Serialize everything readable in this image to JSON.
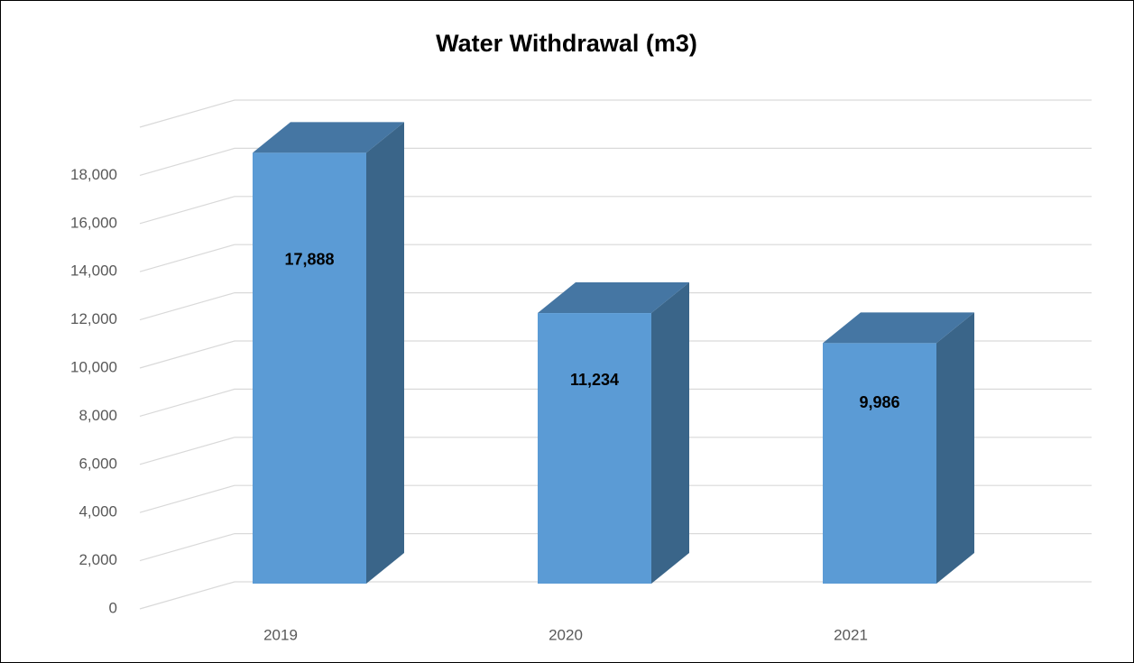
{
  "chart_data": {
    "type": "bar3d",
    "title": "Water Withdrawal (m3)",
    "categories": [
      "2019",
      "2020",
      "2021"
    ],
    "values": [
      17888,
      11234,
      9986
    ],
    "value_labels": [
      "17,888",
      "11,234",
      "9,986"
    ],
    "color": "#5b9bd5",
    "ylim": [
      0,
      20000
    ],
    "yticks": [
      0,
      {
        "value": 2000,
        "label": "2,000"
      },
      {
        "value": 4000,
        "label": "4,000"
      },
      {
        "value": 6000,
        "label": "6,000"
      },
      {
        "value": 8000,
        "label": "8,000"
      },
      {
        "value": 10000,
        "label": "10,000"
      },
      {
        "value": 12000,
        "label": "12,000"
      },
      {
        "value": 14000,
        "label": "14,000"
      },
      {
        "value": 16000,
        "label": "16,000"
      },
      {
        "value": 18000,
        "label": "18,000"
      }
    ],
    "grid": true
  }
}
